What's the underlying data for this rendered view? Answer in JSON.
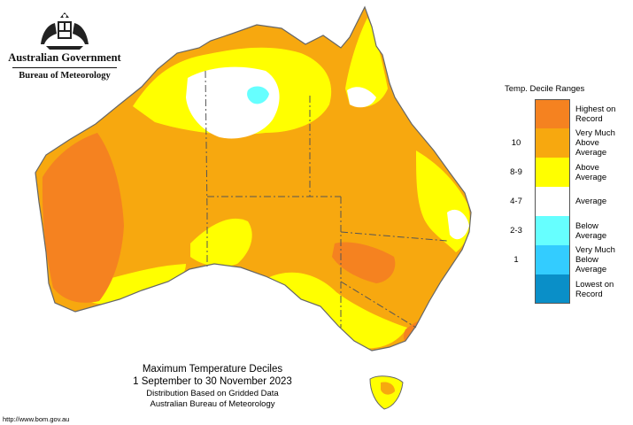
{
  "header": {
    "government": "Australian Government",
    "agency": "Bureau of Meteorology"
  },
  "legend": {
    "title": "Temp. Decile Ranges",
    "items": [
      {
        "label": "Highest on Record",
        "range": "",
        "color": "#f58220"
      },
      {
        "label": "Very Much Above Average",
        "range": "10",
        "color": "#f7a80f"
      },
      {
        "label": "Above Average",
        "range": "8-9",
        "color": "#ffff00"
      },
      {
        "label": "Average",
        "range": "4-7",
        "color": "#ffffff"
      },
      {
        "label": "Below Average",
        "range": "2-3",
        "color": "#66ffff"
      },
      {
        "label": "Very Much Below Average",
        "range": "1",
        "color": "#33ccff"
      },
      {
        "label": "Lowest on Record",
        "range": "",
        "color": "#0a8fc8"
      }
    ]
  },
  "caption": {
    "title": "Maximum Temperature Deciles",
    "dates": "1 September to 30 November 2023",
    "line1": "Distribution Based on Gridded Data",
    "line2": "Australian Bureau of Meteorology"
  },
  "footer": {
    "url": "http://www.bom.gov.au"
  },
  "map": {
    "region": "Australia",
    "colors": {
      "land_base": "#f7a80f",
      "above": "#ffff00",
      "average": "#ffffff",
      "record_high": "#f58220",
      "below": "#66ffff",
      "border": "#555555"
    }
  }
}
